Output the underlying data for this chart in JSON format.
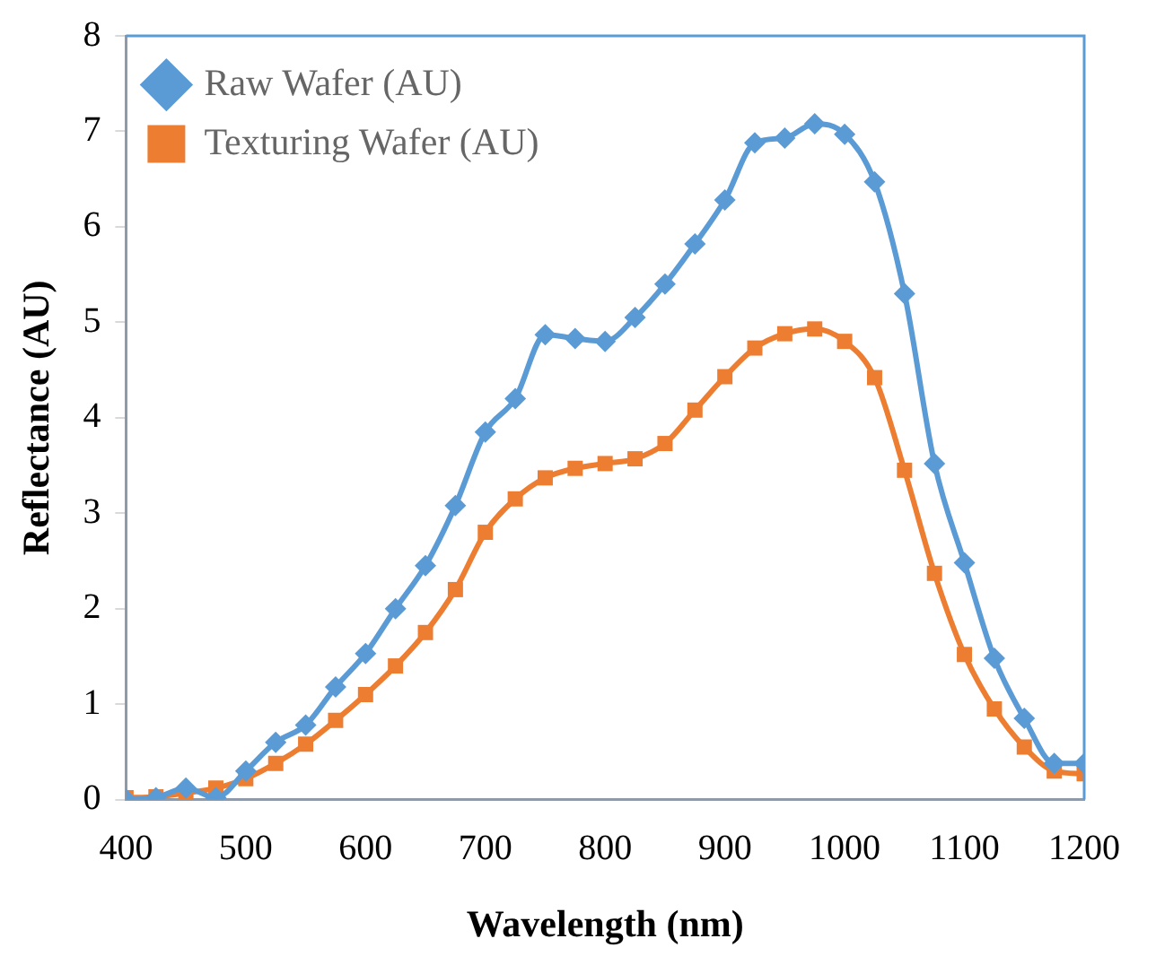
{
  "chart_data": {
    "type": "line",
    "xlabel": "Wavelength (nm)",
    "ylabel": "Reflectance (AU)",
    "x": [
      400,
      425,
      450,
      475,
      500,
      525,
      550,
      575,
      600,
      625,
      650,
      675,
      700,
      725,
      750,
      775,
      800,
      825,
      850,
      875,
      900,
      925,
      950,
      975,
      1000,
      1025,
      1050,
      1075,
      1100,
      1125,
      1150,
      1175,
      1200
    ],
    "series": [
      {
        "name": "Raw Wafer (AU)",
        "color": "#5b9bd5",
        "marker": "diamond",
        "values": [
          0.0,
          0.02,
          0.12,
          0.02,
          0.3,
          0.6,
          0.78,
          1.18,
          1.53,
          2.0,
          2.45,
          3.08,
          3.85,
          4.2,
          4.87,
          4.83,
          4.8,
          5.05,
          5.4,
          5.82,
          6.28,
          6.88,
          6.93,
          7.08,
          6.97,
          6.47,
          5.3,
          3.52,
          2.48,
          1.48,
          0.85,
          0.38,
          0.38
        ]
      },
      {
        "name": "Texturing Wafer (AU)",
        "color": "#ed7d31",
        "marker": "square",
        "values": [
          0.02,
          0.03,
          0.07,
          0.12,
          0.22,
          0.38,
          0.58,
          0.83,
          1.1,
          1.4,
          1.75,
          2.2,
          2.8,
          3.15,
          3.37,
          3.47,
          3.52,
          3.57,
          3.73,
          4.08,
          4.43,
          4.73,
          4.88,
          4.93,
          4.8,
          4.42,
          3.45,
          2.37,
          1.52,
          0.95,
          0.55,
          0.3,
          0.27
        ]
      }
    ],
    "xlim": [
      400,
      1200
    ],
    "xticks": [
      400,
      500,
      600,
      700,
      800,
      900,
      1000,
      1100,
      1200
    ],
    "ylim": [
      0,
      8
    ],
    "yticks": [
      0,
      1,
      2,
      3,
      4,
      5,
      6,
      7,
      8
    ],
    "grid": false,
    "legend": "top left",
    "line_style": "solid"
  }
}
